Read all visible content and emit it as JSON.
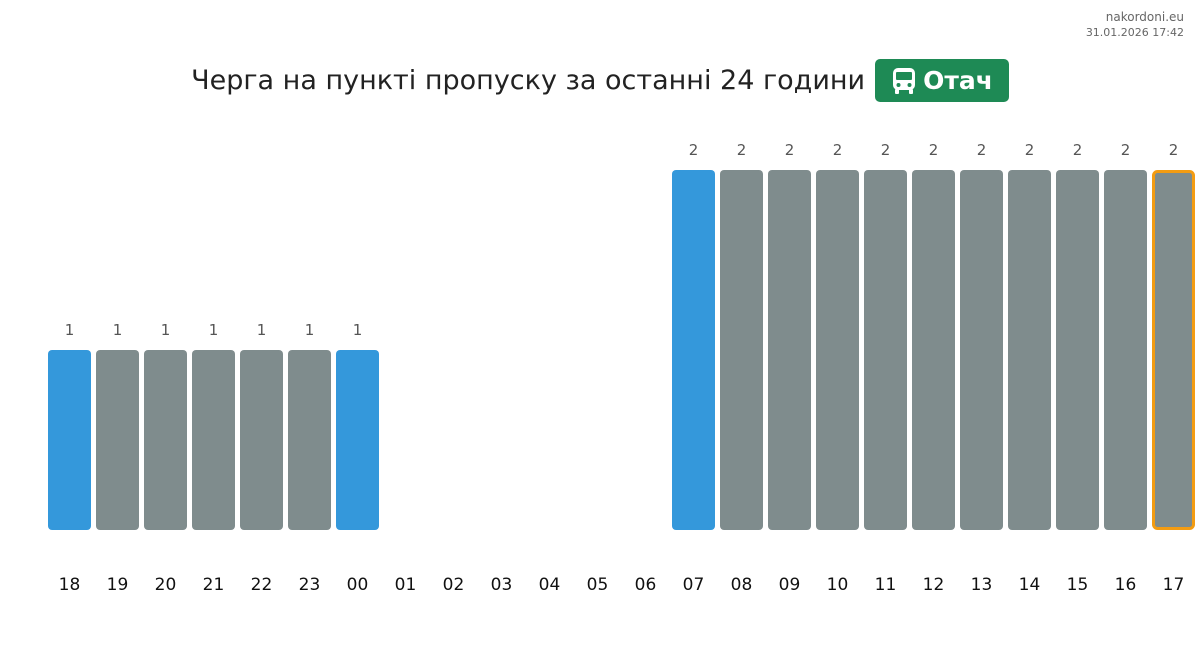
{
  "chart_data": {
    "type": "bar",
    "title": "Черга на пункті пропуску за останні 24 години",
    "badge": "Отач",
    "source": "nakordoni.eu",
    "timestamp": "31.01.2026 17:42",
    "categories": [
      "18",
      "19",
      "20",
      "21",
      "22",
      "23",
      "00",
      "01",
      "02",
      "03",
      "04",
      "05",
      "06",
      "07",
      "08",
      "09",
      "10",
      "11",
      "12",
      "13",
      "14",
      "15",
      "16",
      "17"
    ],
    "values": [
      1,
      1,
      1,
      1,
      1,
      1,
      1,
      null,
      null,
      null,
      null,
      null,
      null,
      2,
      2,
      2,
      2,
      2,
      2,
      2,
      2,
      2,
      2,
      2
    ],
    "colors": [
      "#3498db",
      "#7f8c8d",
      "#7f8c8d",
      "#7f8c8d",
      "#7f8c8d",
      "#7f8c8d",
      "#3498db",
      null,
      null,
      null,
      null,
      null,
      null,
      "#3498db",
      "#7f8c8d",
      "#7f8c8d",
      "#7f8c8d",
      "#7f8c8d",
      "#7f8c8d",
      "#7f8c8d",
      "#7f8c8d",
      "#7f8c8d",
      "#7f8c8d",
      "#7f8c8d"
    ],
    "outline_colors": [
      null,
      null,
      null,
      null,
      null,
      null,
      null,
      null,
      null,
      null,
      null,
      null,
      null,
      null,
      null,
      null,
      null,
      null,
      null,
      null,
      null,
      null,
      null,
      "#f39c12"
    ],
    "ylim": [
      0,
      2
    ]
  }
}
